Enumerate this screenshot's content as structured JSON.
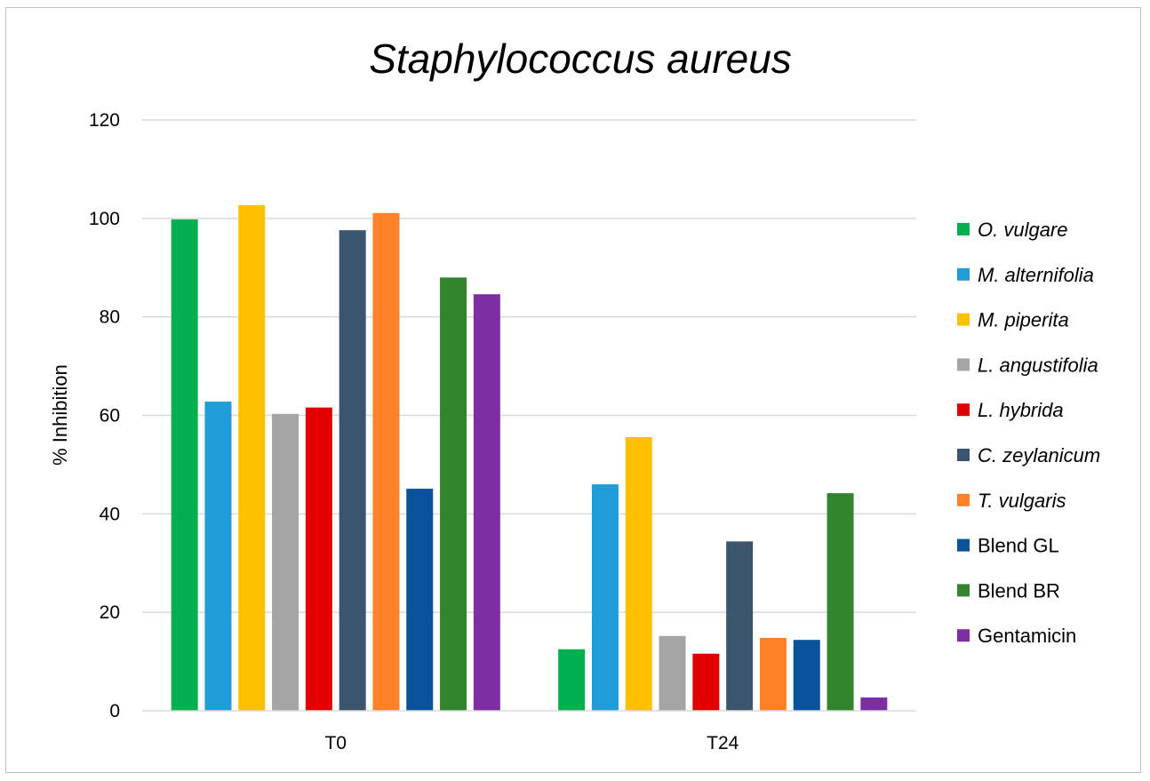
{
  "chart_data": {
    "type": "bar",
    "title": "Staphylococcus aureus",
    "xlabel": "",
    "ylabel": "% Inhibition",
    "ylim": [
      0,
      120
    ],
    "yticks": [
      0,
      20,
      40,
      60,
      80,
      100,
      120
    ],
    "grid": true,
    "legend_position": "right",
    "categories": [
      "T0",
      "T24"
    ],
    "series": [
      {
        "name": "O. vulgare",
        "italic": true,
        "color": "#00b050",
        "values": [
          99.8,
          12.5
        ]
      },
      {
        "name": "M. alternifolia",
        "italic": true,
        "color": "#1f9dd9",
        "values": [
          62.8,
          46.0
        ]
      },
      {
        "name": "M. piperita",
        "italic": true,
        "color": "#ffc000",
        "values": [
          102.7,
          55.6
        ]
      },
      {
        "name": "L. angustifolia",
        "italic": true,
        "color": "#a5a5a5",
        "values": [
          60.3,
          15.2
        ]
      },
      {
        "name": "L. hybrida",
        "italic": true,
        "color": "#e00000",
        "values": [
          61.6,
          11.6
        ]
      },
      {
        "name": "C. zeylanicum",
        "italic": true,
        "color": "#3b556e",
        "values": [
          97.6,
          34.4
        ]
      },
      {
        "name": "T. vulgaris",
        "italic": true,
        "color": "#ff8128",
        "values": [
          101.1,
          14.8
        ]
      },
      {
        "name": "Blend GL",
        "italic": false,
        "color": "#08539b",
        "values": [
          45.1,
          14.4
        ]
      },
      {
        "name": "Blend BR",
        "italic": false,
        "color": "#31852c",
        "values": [
          88.0,
          44.2
        ]
      },
      {
        "name": "Gentamicin",
        "italic": false,
        "color": "#7d2ea3",
        "values": [
          84.6,
          2.7
        ]
      }
    ]
  }
}
